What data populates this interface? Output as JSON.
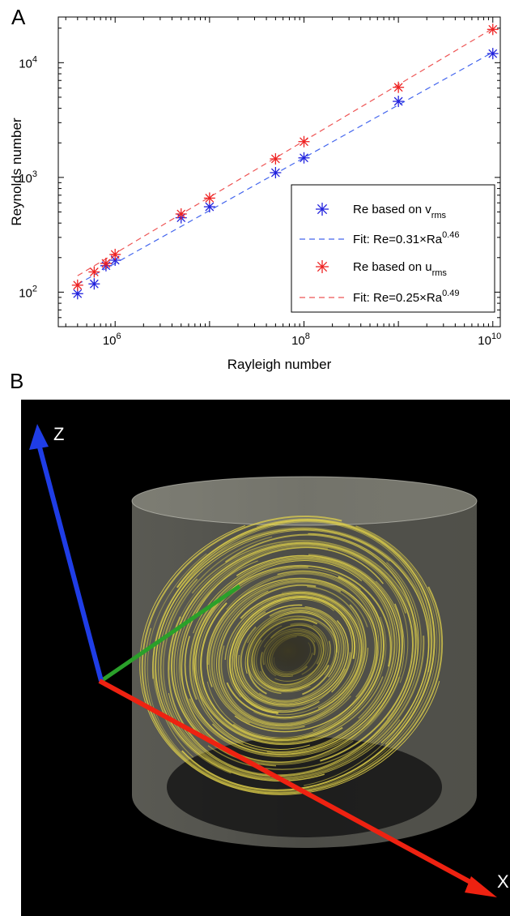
{
  "panel_a_label": "A",
  "panel_b_label": "B",
  "chart_data": {
    "type": "scatter",
    "xscale": "log",
    "yscale": "log",
    "xlim": [
      250000,
      12000000000
    ],
    "ylim": [
      50,
      25000
    ],
    "xlabel": "Rayleigh number",
    "ylabel": "Reynolds number",
    "xticks": [
      {
        "value": 1000000,
        "base": "10",
        "exp": "6"
      },
      {
        "value": 100000000,
        "base": "10",
        "exp": "8"
      },
      {
        "value": 10000000000,
        "base": "10",
        "exp": "10"
      }
    ],
    "yticks": [
      {
        "value": 100,
        "base": "10",
        "exp": "2"
      },
      {
        "value": 1000,
        "base": "10",
        "exp": "3"
      },
      {
        "value": 10000,
        "base": "10",
        "exp": "4"
      }
    ],
    "legend_position": "bottom-right",
    "series": [
      {
        "name": "Re based on v",
        "sub": "rms",
        "marker": "asterisk",
        "color": "#2222dd",
        "x": [
          400000,
          600000,
          800000,
          1000000,
          5000000,
          10000000,
          50000000,
          100000000,
          1000000000,
          10000000000
        ],
        "y": [
          97,
          118,
          170,
          190,
          445,
          555,
          1100,
          1480,
          4600,
          12000
        ]
      },
      {
        "name": "Re based on u",
        "sub": "rms",
        "marker": "asterisk",
        "color": "#ee2222",
        "x": [
          400000,
          600000,
          800000,
          1000000,
          5000000,
          10000000,
          50000000,
          100000000,
          1000000000,
          10000000000
        ],
        "y": [
          115,
          150,
          178,
          213,
          480,
          660,
          1450,
          2050,
          6100,
          19500
        ]
      }
    ],
    "fits": [
      {
        "label": "Fit: Re=0.31×Ra",
        "exp": "0.46",
        "color": "#4466ee",
        "a": 0.31,
        "b": 0.46,
        "x_range": [
          400000,
          10000000000
        ]
      },
      {
        "label": "Fit: Re=0.25×Ra",
        "exp": "0.49",
        "color": "#ee5555",
        "a": 0.25,
        "b": 0.49,
        "x_range": [
          400000,
          10000000000
        ]
      }
    ]
  },
  "render": {
    "axis_labels": {
      "z": "Z",
      "x": "X"
    },
    "axis_colors": {
      "z": "#1f3de6",
      "y": "#2aa02a",
      "x": "#ee2211"
    },
    "streamline_color": "#e6d64a"
  }
}
